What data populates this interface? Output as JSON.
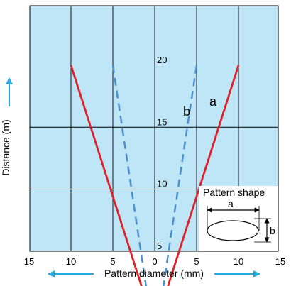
{
  "chart_data": {
    "type": "line",
    "xlabel": "Pattern diameter (mm)",
    "ylabel": "Distance (m)",
    "xlim": [
      -15,
      15
    ],
    "ylim": [
      0,
      20
    ],
    "x_tick_labels": [
      "15",
      "10",
      "5",
      "0",
      "5",
      "10",
      "15"
    ],
    "y_tick_labels": [
      "5",
      "10",
      "15",
      "20"
    ],
    "grid": true,
    "series": [
      {
        "name": "a",
        "style": "solid",
        "color": "#e0202a",
        "left": {
          "x": [
            -10,
            -1.5
          ],
          "y": [
            20,
            2
          ]
        },
        "right": {
          "x": [
            1.5,
            10
          ],
          "y": [
            2,
            20
          ]
        }
      },
      {
        "name": "b",
        "style": "dashed",
        "color": "#4a90d0",
        "left": {
          "x": [
            -5,
            -1
          ],
          "y": [
            20,
            2
          ]
        },
        "right": {
          "x": [
            1,
            5
          ],
          "y": [
            2,
            20
          ]
        }
      }
    ],
    "inset": {
      "title": "Pattern shape",
      "width_label": "a",
      "height_label": "b"
    }
  },
  "colors": {
    "plot_bg": "#bfe6f7",
    "grid": "#000000",
    "arrow": "#29a9e0",
    "red": "#e0202a",
    "blue": "#4a90d0"
  }
}
